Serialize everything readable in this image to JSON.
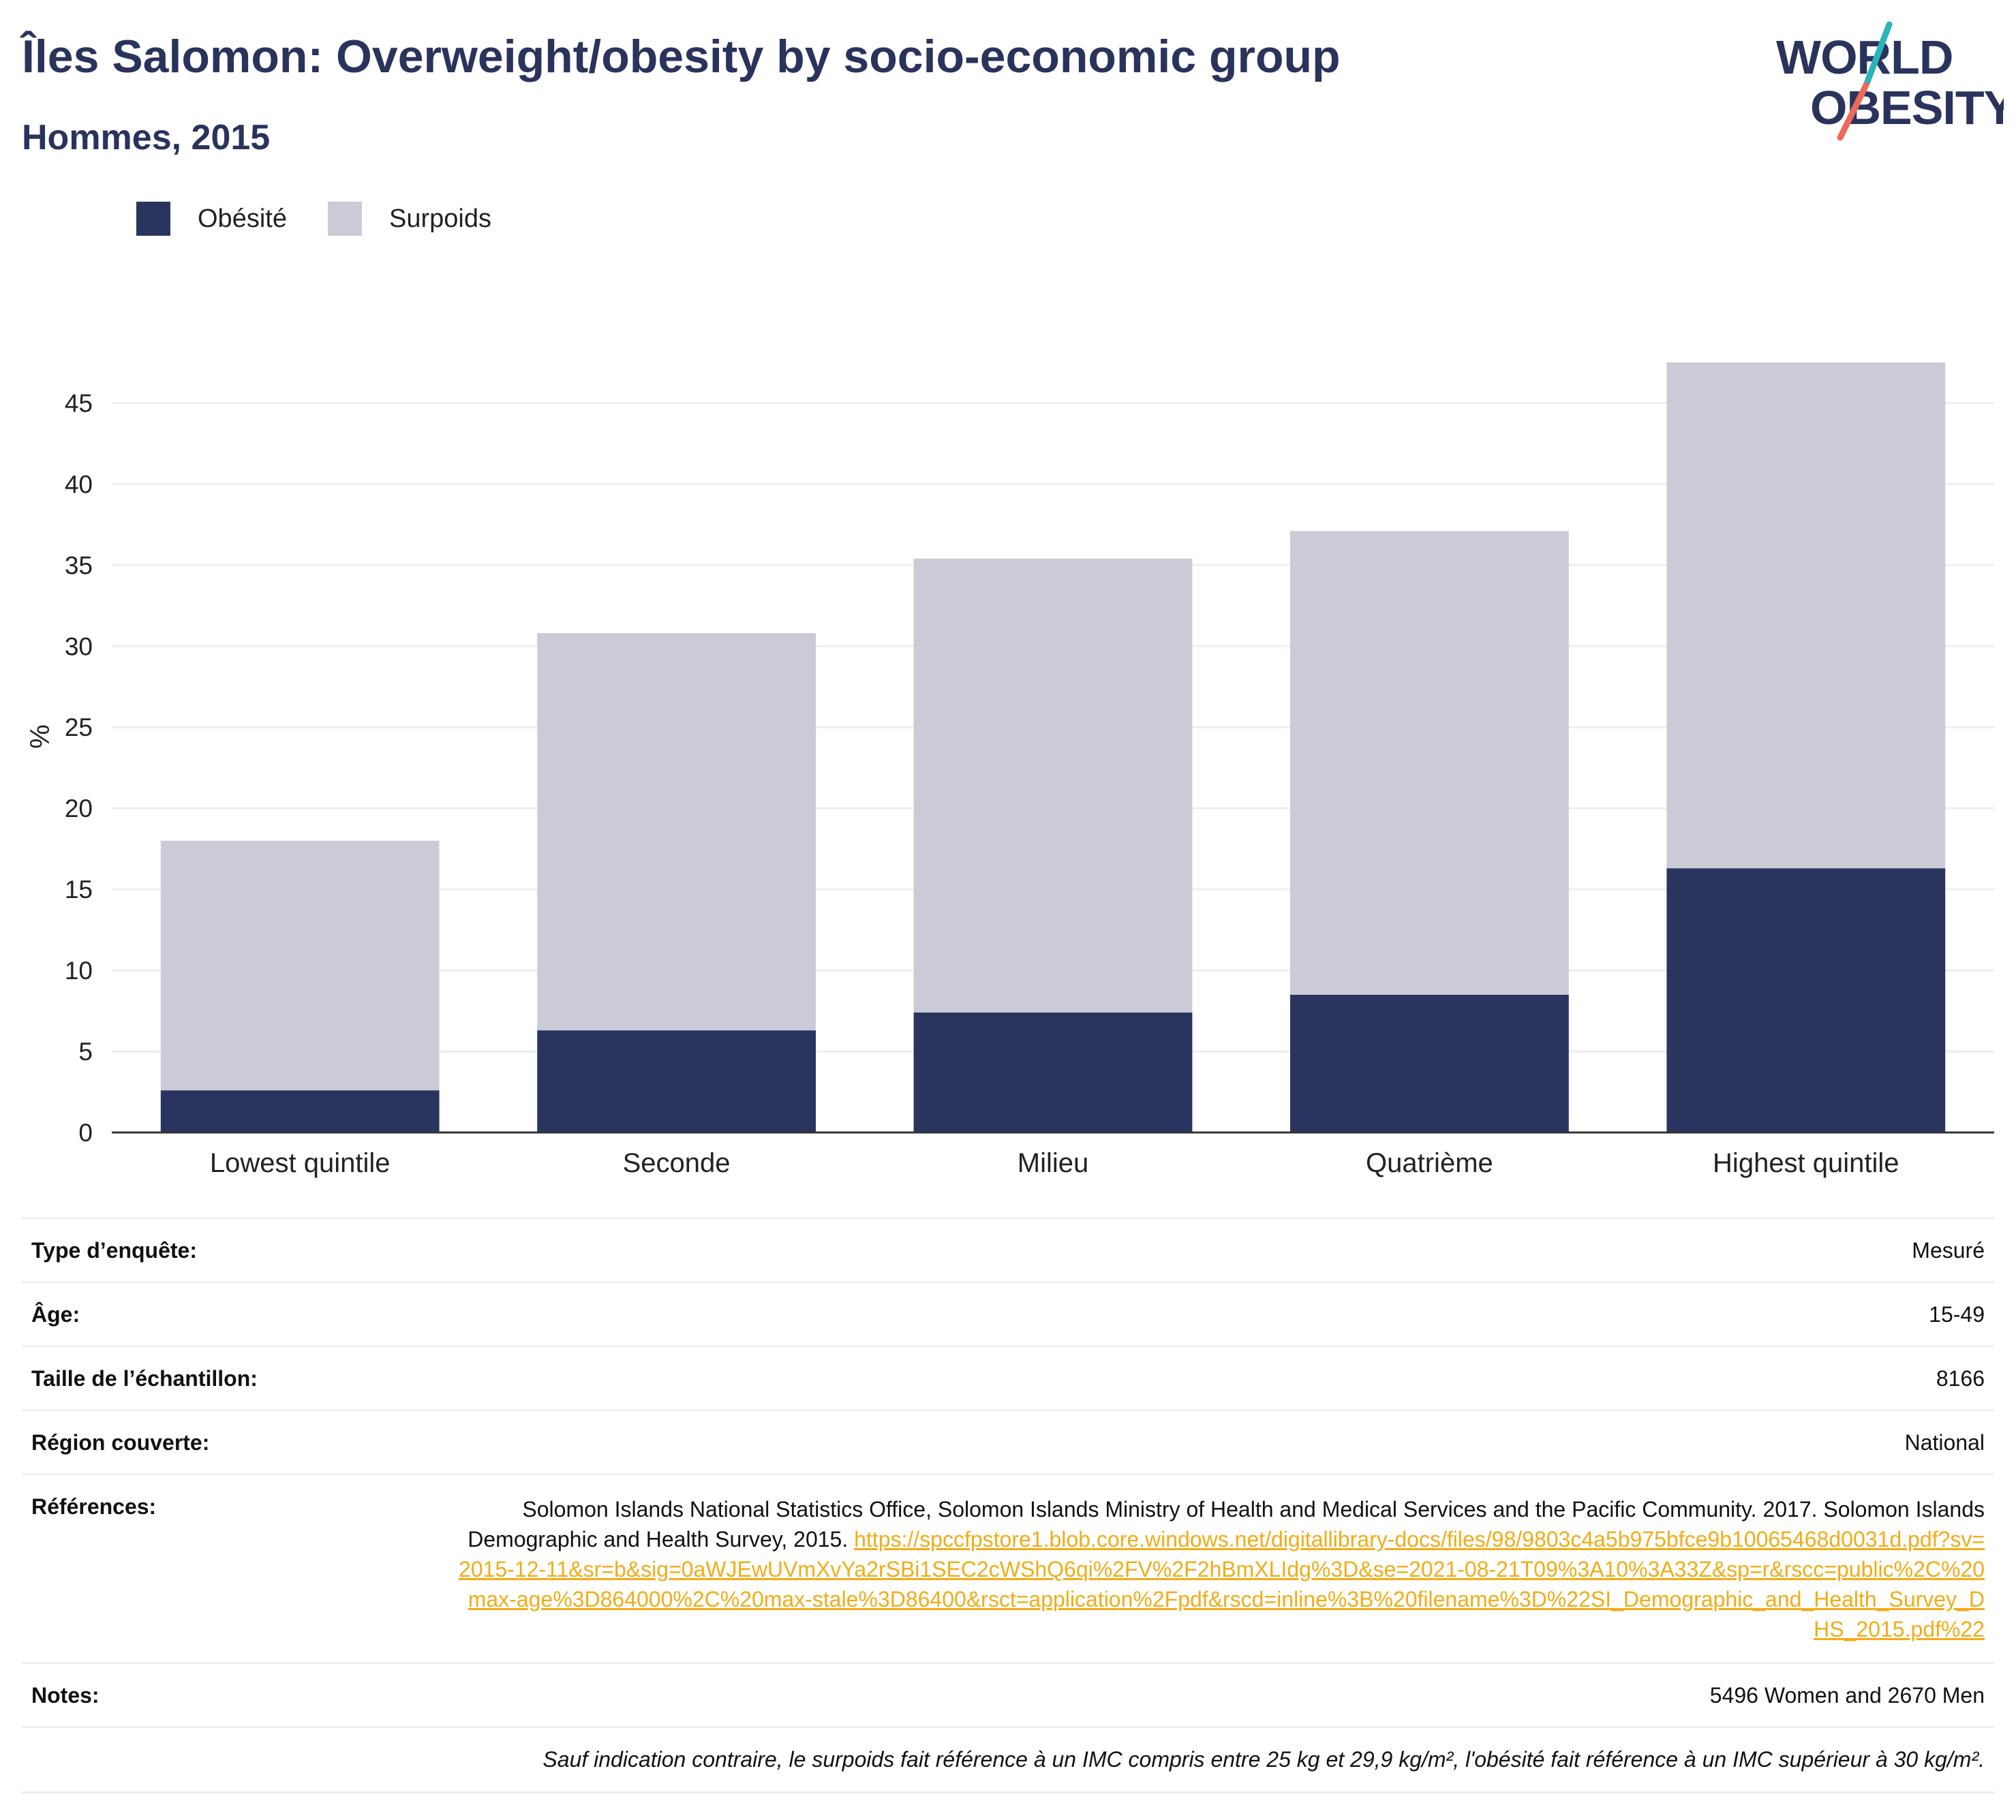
{
  "header": {
    "title": "Îles Salomon: Overweight/obesity by socio-economic group",
    "subtitle": "Hommes, 2015"
  },
  "logo": {
    "line1": "WORLD",
    "line2": "OBESITY",
    "colors": {
      "text": "#29335c",
      "slash_top": "#2bb5b8",
      "slash_bottom": "#ec6a5c"
    }
  },
  "colors": {
    "obesity": "#29345f",
    "overweight": "#cacbd6",
    "grid": "#eceef2",
    "axis": "#333333",
    "title": "#29335c",
    "link": "#f2ac17"
  },
  "chart_data": {
    "type": "bar",
    "stacked": true,
    "categories": [
      "Lowest quintile",
      "Seconde",
      "Milieu",
      "Quatrième",
      "Highest quintile"
    ],
    "series": [
      {
        "name": "Obésité",
        "values": [
          2.6,
          6.3,
          7.4,
          8.5,
          16.3
        ]
      },
      {
        "name": "Surpoids",
        "values": [
          15.4,
          24.5,
          28.0,
          28.6,
          31.2
        ]
      }
    ],
    "totals": [
      18.0,
      30.8,
      35.4,
      37.1,
      47.5
    ],
    "ylabel": "%",
    "xlabel": "",
    "ylim": [
      0,
      48
    ],
    "yticks": [
      0,
      5,
      10,
      15,
      20,
      25,
      30,
      35,
      40,
      45
    ],
    "grid": true,
    "legend_position": "top-left"
  },
  "meta": {
    "survey_type": {
      "label": "Type d’enquête:",
      "value": "Mesuré"
    },
    "age": {
      "label": "Âge:",
      "value": "15-49"
    },
    "sample_size": {
      "label": "Taille de l’échantillon:",
      "value": "8166"
    },
    "region": {
      "label": "Région couverte:",
      "value": "National"
    },
    "references": {
      "label": "Références:",
      "text": "Solomon Islands National Statistics Office, Solomon Islands Ministry of Health and Medical Services and the Pacific Community. 2017. Solomon Islands Demographic and Health Survey, 2015. ",
      "link": "https://spccfpstore1.blob.core.windows.net/digitallibrary-docs/files/98/9803c4a5b975bfce9b10065468d0031d.pdf?sv=2015-12-11&sr=b&sig=0aWJEwUVmXvYa2rSBi1SEC2cWShQ6qi%2FV%2F2hBmXLIdg%3D&se=2021-08-21T09%3A10%3A33Z&sp=r&rscc=public%2C%20max-age%3D864000%2C%20max-stale%3D86400&rsct=application%2Fpdf&rscd=inline%3B%20filename%3D%22SI_Demographic_and_Health_Survey_DHS_2015.pdf%22"
    },
    "notes": {
      "label": "Notes:",
      "value": "5496 Women and 2670 Men"
    },
    "footnote": "Sauf indication contraire, le surpoids fait référence à un IMC compris entre 25 kg et 29,9 kg/m², l'obésité fait référence à un IMC supérieur à 30 kg/m²."
  }
}
